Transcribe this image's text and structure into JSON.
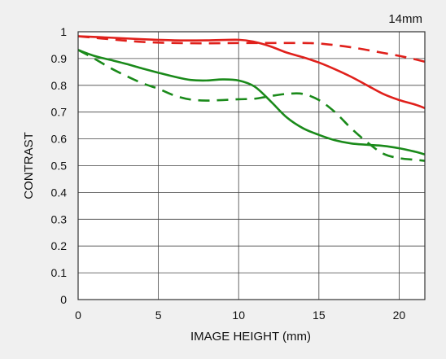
{
  "focal_length_label": "14mm",
  "colors": {
    "background": "#f0f0f0",
    "plot_background": "#ffffff",
    "grid": "#444444",
    "red": "#e0201b",
    "green": "#1a8a1a"
  },
  "chart_data": {
    "type": "line",
    "title": "",
    "xlabel": "IMAGE HEIGHT (mm)",
    "ylabel": "CONTRAST",
    "xlim": [
      0,
      21.6
    ],
    "ylim": [
      0,
      1
    ],
    "grid": true,
    "x_ticks": [
      0,
      5,
      10,
      15,
      20
    ],
    "y_ticks": [
      0,
      0.1,
      0.2,
      0.3,
      0.4,
      0.5,
      0.6,
      0.7,
      0.8,
      0.9,
      1
    ],
    "y_tick_labels": [
      "0",
      "0.1",
      "0.2",
      "0.3",
      "0.4",
      "0.5",
      "0.6",
      "0.7",
      "0.8",
      "0.9",
      "1"
    ],
    "x_tick_labels": [
      "0",
      "5",
      "10",
      "15",
      "20"
    ],
    "series": [
      {
        "color": "red",
        "style": "solid",
        "x": [
          0,
          2,
          4,
          6,
          8,
          10,
          11,
          12,
          13,
          14,
          15,
          16,
          17,
          18,
          19,
          20,
          21,
          21.6
        ],
        "y": [
          0.983,
          0.978,
          0.972,
          0.968,
          0.968,
          0.97,
          0.962,
          0.945,
          0.922,
          0.905,
          0.885,
          0.86,
          0.832,
          0.8,
          0.768,
          0.745,
          0.728,
          0.715
        ]
      },
      {
        "color": "red",
        "style": "dashed",
        "x": [
          0,
          2,
          4,
          6,
          8,
          10,
          12,
          14,
          15,
          16,
          17,
          18,
          19,
          20,
          21,
          21.6
        ],
        "y": [
          0.983,
          0.972,
          0.962,
          0.958,
          0.957,
          0.958,
          0.958,
          0.958,
          0.956,
          0.95,
          0.942,
          0.932,
          0.921,
          0.91,
          0.897,
          0.888
        ]
      },
      {
        "color": "green",
        "style": "solid",
        "x": [
          0,
          1,
          2,
          3,
          4,
          5,
          6,
          7,
          8,
          9,
          10,
          11,
          12,
          13,
          14,
          15,
          16,
          17,
          18,
          19,
          20,
          21,
          21.6
        ],
        "y": [
          0.932,
          0.91,
          0.895,
          0.88,
          0.863,
          0.847,
          0.832,
          0.82,
          0.818,
          0.822,
          0.818,
          0.795,
          0.74,
          0.68,
          0.64,
          0.615,
          0.595,
          0.583,
          0.578,
          0.574,
          0.565,
          0.552,
          0.542
        ]
      },
      {
        "color": "green",
        "style": "dashed",
        "x": [
          0,
          1,
          2,
          3,
          4,
          5,
          6,
          7,
          8,
          9,
          10,
          11,
          12,
          13,
          14,
          15,
          16,
          17,
          18,
          19,
          20,
          21,
          21.6
        ],
        "y": [
          0.932,
          0.9,
          0.865,
          0.835,
          0.808,
          0.787,
          0.762,
          0.747,
          0.743,
          0.745,
          0.748,
          0.75,
          0.76,
          0.768,
          0.768,
          0.745,
          0.7,
          0.64,
          0.588,
          0.545,
          0.528,
          0.522,
          0.518
        ]
      }
    ]
  }
}
